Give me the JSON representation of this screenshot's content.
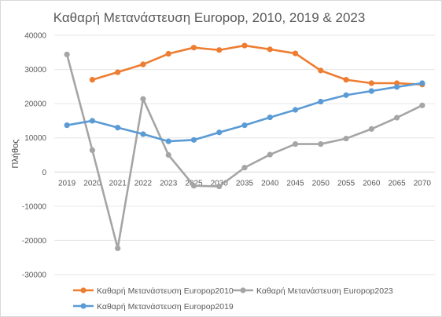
{
  "chart_data": {
    "type": "line",
    "title": "Καθαρή Μετανάστευση Europop, 2010, 2019 & 2023",
    "ylabel": "Πλήθος",
    "xlabel": "",
    "ylim": [
      -30000,
      40000
    ],
    "yticks": [
      "-30000",
      "-20000",
      "-10000",
      "0",
      "10000",
      "20000",
      "30000",
      "40000"
    ],
    "ytick_values": [
      -30000,
      -20000,
      -10000,
      0,
      10000,
      20000,
      30000,
      40000
    ],
    "categories": [
      "2019",
      "2020",
      "2021",
      "2022",
      "2023",
      "2025",
      "2030",
      "2035",
      "2040",
      "2045",
      "2050",
      "2055",
      "2060",
      "2065",
      "2070"
    ],
    "grid": true,
    "legend_position": "bottom",
    "series": [
      {
        "name": "Καθαρή Μετανάστευση Europop2010",
        "color": "#ED7D31",
        "values": [
          null,
          27000,
          29200,
          31500,
          34600,
          36400,
          35700,
          37000,
          35900,
          34700,
          29700,
          27000,
          26000,
          26000,
          25600
        ]
      },
      {
        "name": "Καθαρή Μετανάστευση Europop2023",
        "color": "#A5A5A5",
        "values": [
          34400,
          6400,
          -22300,
          21400,
          5000,
          -4000,
          -4200,
          1300,
          5100,
          8200,
          8200,
          9800,
          12600,
          15900,
          19500
        ]
      },
      {
        "name": "Καθαρή Μετανάστευση Europop2019",
        "color": "#5B9BD5",
        "values": [
          13700,
          15000,
          13000,
          11100,
          9000,
          9400,
          11600,
          13700,
          16000,
          18200,
          20600,
          22500,
          23700,
          24900,
          26000
        ]
      }
    ]
  }
}
